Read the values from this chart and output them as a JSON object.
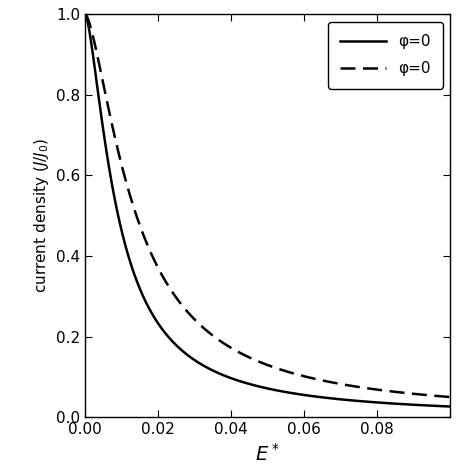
{
  "title": "",
  "xlabel_math": "$E^*$",
  "ylabel": "current density $(J/J_0)$",
  "xlim": [
    0.0,
    0.1
  ],
  "ylim": [
    0.0,
    1.0
  ],
  "xticks": [
    0.0,
    0.02,
    0.04,
    0.06,
    0.08
  ],
  "yticks": [
    0.0,
    0.2,
    0.4,
    0.6,
    0.8,
    1.0
  ],
  "solid_label": "φ=0",
  "dashed_label": "φ=0",
  "a_solid": 0.009,
  "a_dashed": 0.014,
  "n_solid": 1.5,
  "n_dashed": 1.5,
  "background_color": "#ffffff",
  "line_color": "#000000",
  "figsize": [
    4.74,
    4.74
  ],
  "dpi": 100
}
